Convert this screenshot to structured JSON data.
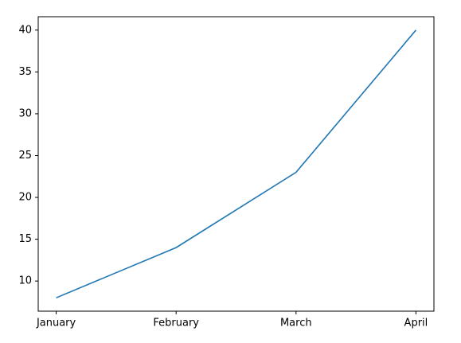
{
  "chart_data": {
    "type": "line",
    "categories": [
      "January",
      "February",
      "March",
      "April"
    ],
    "values": [
      8,
      14,
      23,
      40
    ],
    "color": "#1f77b4",
    "ylim": [
      6.4,
      41.6
    ],
    "yticks": [
      10,
      15,
      20,
      25,
      30,
      35,
      40
    ],
    "grid": false
  }
}
